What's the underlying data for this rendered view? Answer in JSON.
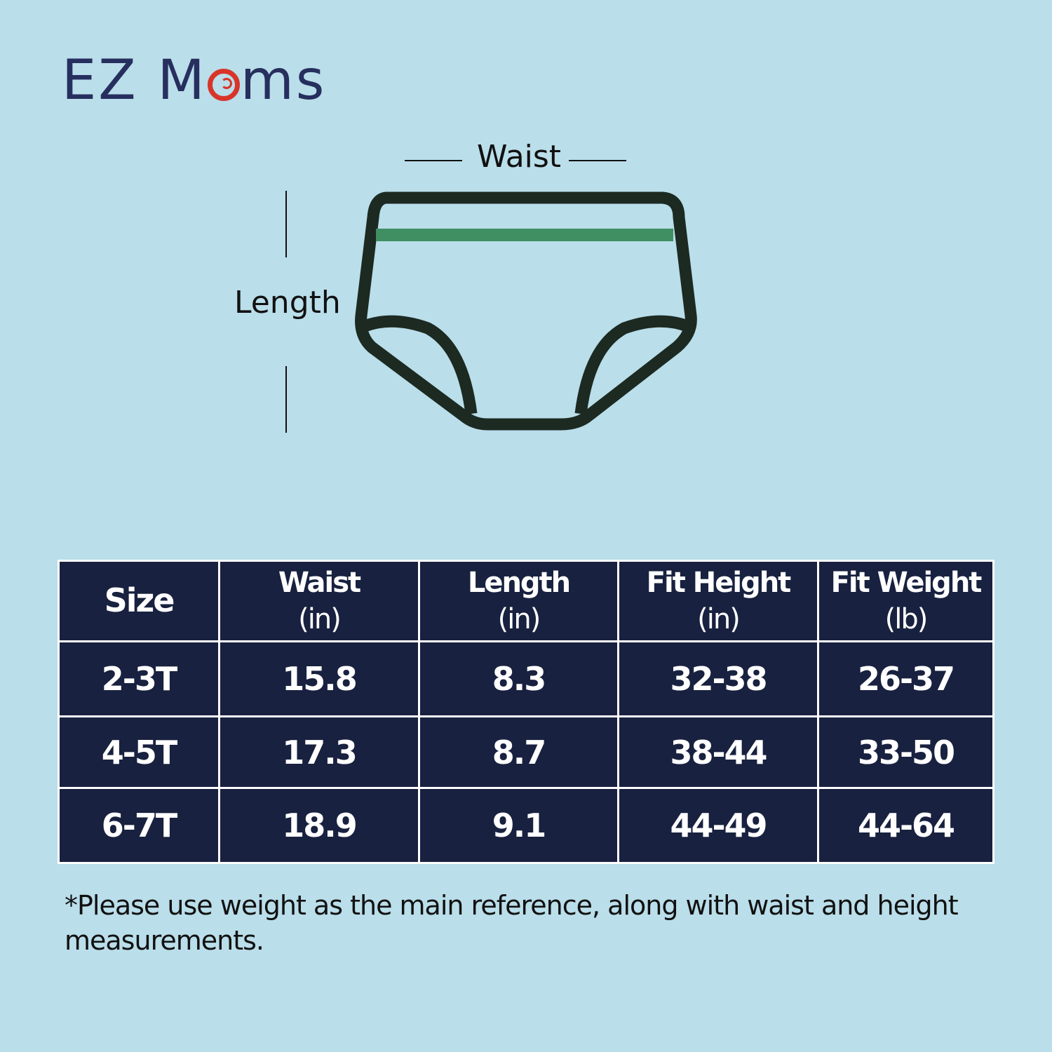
{
  "brand": {
    "logo_text": "EZ Moms",
    "logo_part1": "EZ M",
    "logo_part2": "ms",
    "accent": "#d8352a",
    "color": "#262f5e"
  },
  "diagram": {
    "waist_label": "Waist",
    "length_label": "Length",
    "band_color": "#3f8f63",
    "outline_color": "#1c2a22"
  },
  "table": {
    "headers": [
      [
        "Size",
        ""
      ],
      [
        "Waist",
        "(in)"
      ],
      [
        "Length",
        "(in)"
      ],
      [
        "Fit Height",
        "(in)"
      ],
      [
        "Fit Weight",
        "(lb)"
      ]
    ],
    "rows": [
      [
        "2-3T",
        "15.8",
        "8.3",
        "32-38",
        "26-37"
      ],
      [
        "4-5T",
        "17.3",
        "8.7",
        "38-44",
        "33-50"
      ],
      [
        "6-7T",
        "18.9",
        "9.1",
        "44-49",
        "44-64"
      ]
    ],
    "bg": "#18213f"
  },
  "note": "*Please use weight as the main reference, along with waist and height measurements."
}
